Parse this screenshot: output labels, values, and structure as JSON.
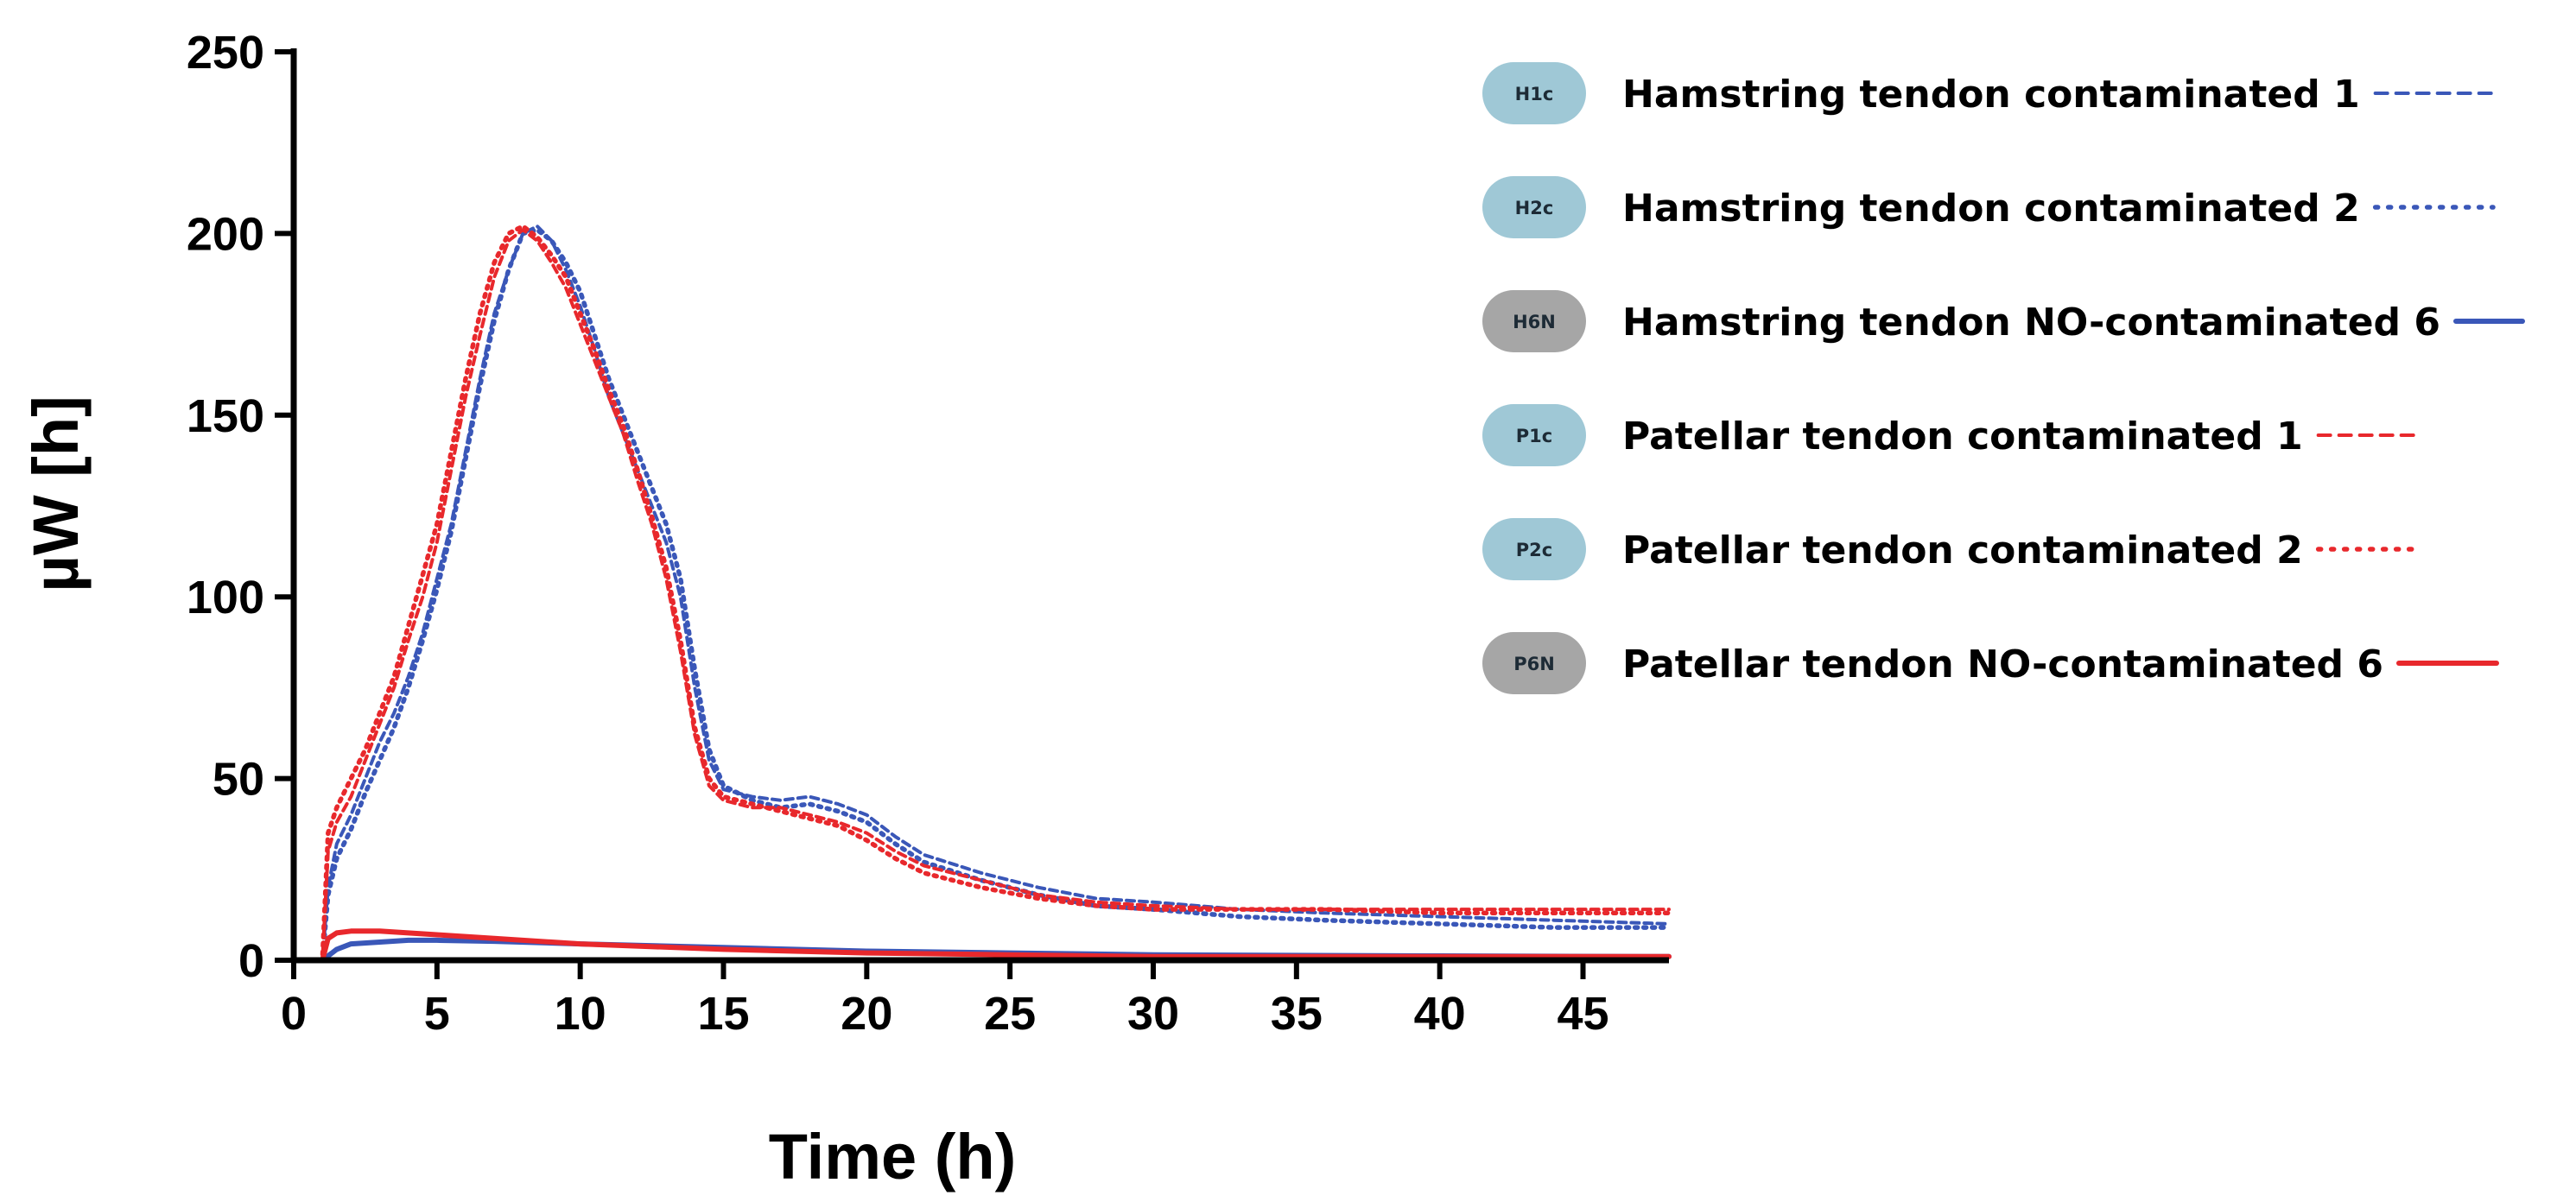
{
  "chart_data": {
    "type": "line",
    "title": "",
    "xlabel": "Time (h)",
    "ylabel": "µW [h]",
    "xlim": [
      0,
      48
    ],
    "ylim": [
      0,
      250
    ],
    "xticks": [
      "0",
      "5",
      "10",
      "15",
      "20",
      "25",
      "30",
      "35",
      "40",
      "45"
    ],
    "yticks": [
      "0",
      "50",
      "100",
      "150",
      "200",
      "250"
    ],
    "grid": false,
    "legend_position": "top-right",
    "colors": {
      "blue": "#3a57b8",
      "red": "#e8282c",
      "badge_contaminated": "#9fc8d6",
      "badge_non": "#a6a6a6"
    },
    "series": [
      {
        "name": "Hamstring tendon contaminated 1",
        "badge": "H1c",
        "badge_type": "contaminated",
        "color": "blue",
        "style": "dashed",
        "x": [
          0,
          1,
          1.2,
          1.5,
          2,
          2.5,
          3,
          3.5,
          4,
          4.5,
          5,
          5.5,
          6,
          6.5,
          7,
          7.5,
          8,
          8.5,
          9,
          9.5,
          10,
          10.5,
          11,
          11.5,
          12,
          12.5,
          13,
          13.5,
          14,
          14.5,
          15,
          16,
          17,
          18,
          19,
          20,
          21,
          22,
          24,
          26,
          28,
          30,
          33,
          36,
          40,
          44,
          48
        ],
        "y": [
          0,
          0,
          20,
          32,
          40,
          50,
          60,
          68,
          78,
          90,
          105,
          120,
          140,
          160,
          178,
          190,
          200,
          202,
          198,
          190,
          180,
          168,
          155,
          145,
          135,
          125,
          115,
          100,
          75,
          55,
          47,
          45,
          44,
          45,
          43,
          40,
          34,
          29,
          24,
          20,
          17,
          16,
          14,
          13,
          12,
          11,
          10
        ]
      },
      {
        "name": "Hamstring tendon contaminated 2",
        "badge": "H2c",
        "badge_type": "contaminated",
        "color": "blue",
        "style": "dotted",
        "x": [
          0,
          1,
          1.2,
          1.5,
          2,
          2.5,
          3,
          3.5,
          4,
          4.5,
          5,
          5.5,
          6,
          6.5,
          7,
          7.5,
          8,
          8.5,
          9,
          9.5,
          10,
          10.5,
          11,
          11.5,
          12,
          12.5,
          13,
          13.5,
          14,
          14.5,
          15,
          16,
          17,
          18,
          19,
          20,
          21,
          22,
          24,
          26,
          28,
          30,
          33,
          36,
          40,
          44,
          48
        ],
        "y": [
          0,
          0,
          18,
          28,
          36,
          46,
          55,
          64,
          75,
          88,
          102,
          118,
          138,
          158,
          176,
          190,
          200,
          201,
          198,
          192,
          184,
          172,
          160,
          150,
          140,
          130,
          120,
          105,
          80,
          58,
          48,
          44,
          42,
          43,
          41,
          38,
          32,
          27,
          22,
          18,
          15,
          14,
          12,
          11,
          10,
          9,
          9
        ]
      },
      {
        "name": "Hamstring tendon NO-contaminated 6",
        "badge": "H6N",
        "badge_type": "non-contaminated",
        "color": "blue",
        "style": "solid",
        "x": [
          0,
          1,
          1.5,
          2,
          3,
          4,
          5,
          7,
          10,
          15,
          20,
          25,
          30,
          40,
          48
        ],
        "y": [
          0,
          0,
          3,
          4.5,
          5,
          5.5,
          5.5,
          5.2,
          4.5,
          3.5,
          2.5,
          2,
          1.5,
          1.2,
          1
        ]
      },
      {
        "name": "Patellar tendon contaminated 1",
        "badge": "P1c",
        "badge_type": "contaminated",
        "color": "red",
        "style": "dashed",
        "x": [
          0,
          1,
          1.2,
          1.5,
          2,
          2.5,
          3,
          3.5,
          4,
          4.5,
          5,
          5.5,
          6,
          6.5,
          7,
          7.5,
          8,
          8.5,
          9,
          9.5,
          10,
          10.5,
          11,
          11.5,
          12,
          12.5,
          13,
          13.5,
          14,
          14.5,
          15,
          16,
          17,
          18,
          19,
          20,
          21,
          22,
          24,
          26,
          28,
          30,
          33,
          36,
          40,
          44,
          48
        ],
        "y": [
          0,
          0,
          30,
          38,
          45,
          55,
          65,
          75,
          88,
          100,
          115,
          135,
          155,
          172,
          188,
          198,
          201,
          198,
          192,
          185,
          175,
          165,
          155,
          145,
          132,
          120,
          105,
          85,
          62,
          48,
          44,
          42,
          42,
          40,
          38,
          35,
          30,
          26,
          22,
          18,
          16,
          15,
          14,
          14,
          14,
          14,
          14
        ]
      },
      {
        "name": "Patellar tendon contaminated 2",
        "badge": "P2c",
        "badge_type": "contaminated",
        "color": "red",
        "style": "dotted",
        "x": [
          0,
          1,
          1.2,
          1.5,
          2,
          2.5,
          3,
          3.5,
          4,
          4.5,
          5,
          5.5,
          6,
          6.5,
          7,
          7.5,
          8,
          8.5,
          9,
          9.5,
          10,
          10.5,
          11,
          11.5,
          12,
          12.5,
          13,
          13.5,
          14,
          14.5,
          15,
          16,
          17,
          18,
          19,
          20,
          21,
          22,
          24,
          26,
          28,
          30,
          33,
          36,
          40,
          44,
          48
        ],
        "y": [
          0,
          0,
          35,
          42,
          50,
          58,
          68,
          78,
          92,
          106,
          120,
          140,
          160,
          178,
          192,
          200,
          202,
          199,
          194,
          188,
          178,
          168,
          157,
          147,
          135,
          122,
          108,
          88,
          64,
          50,
          45,
          43,
          41,
          39,
          37,
          33,
          28,
          24,
          20,
          17,
          15,
          14,
          14,
          14,
          13,
          13,
          13
        ]
      },
      {
        "name": "Patellar tendon NO-contaminated 6",
        "badge": "P6N",
        "badge_type": "non-contaminated",
        "color": "red",
        "style": "solid",
        "x": [
          0,
          1,
          1.2,
          1.5,
          2,
          3,
          4,
          5,
          7,
          10,
          15,
          20,
          25,
          30,
          40,
          48
        ],
        "y": [
          0,
          0,
          6,
          7.5,
          8,
          8,
          7.5,
          7,
          6,
          4.5,
          3,
          2,
          1.5,
          1,
          1,
          1
        ]
      }
    ]
  }
}
